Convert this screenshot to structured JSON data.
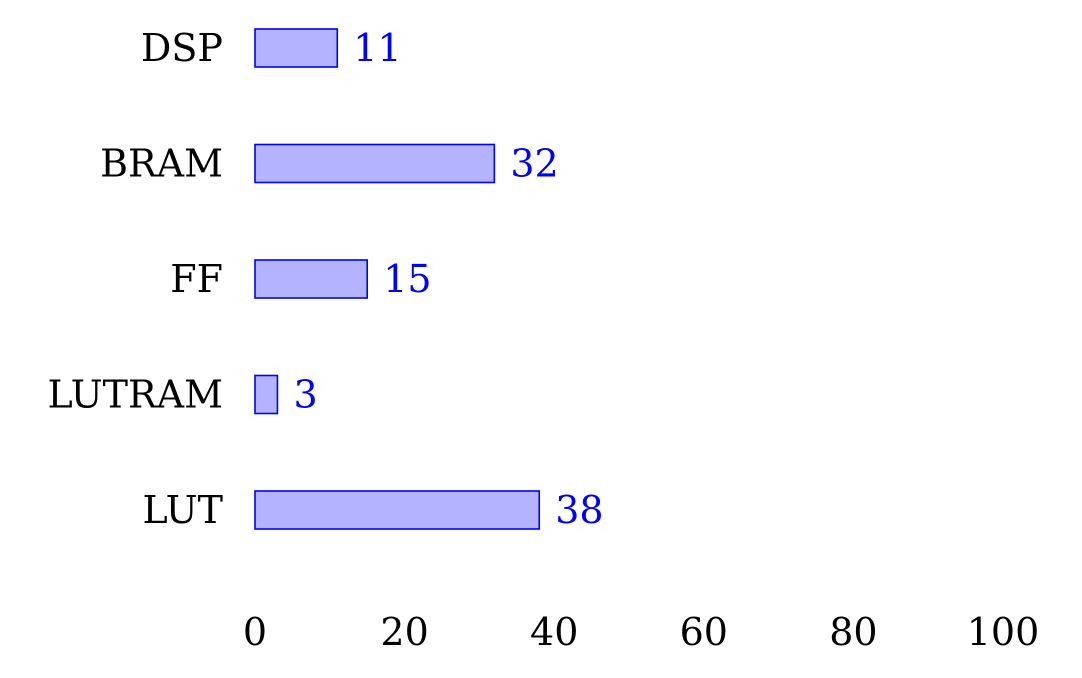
{
  "chart_data": {
    "type": "bar",
    "orientation": "horizontal",
    "title": "",
    "xlabel": "",
    "ylabel": "",
    "categories": [
      "DSP",
      "BRAM",
      "FF",
      "LUTRAM",
      "LUT"
    ],
    "values": [
      11,
      32,
      15,
      3,
      38
    ],
    "value_labels": [
      "11",
      "32",
      "15",
      "3",
      "38"
    ],
    "xlim": [
      0,
      100
    ],
    "xticks": [
      0,
      20,
      40,
      60,
      80,
      100
    ],
    "xtick_labels": [
      "0",
      "20",
      "40",
      "60",
      "80",
      "100"
    ],
    "grid": false,
    "legend": "none",
    "colors": {
      "bar_fill": "#b3b3ff",
      "bar_stroke": "#0000ff",
      "value_text": "#0000ff",
      "text": "#000000"
    }
  }
}
